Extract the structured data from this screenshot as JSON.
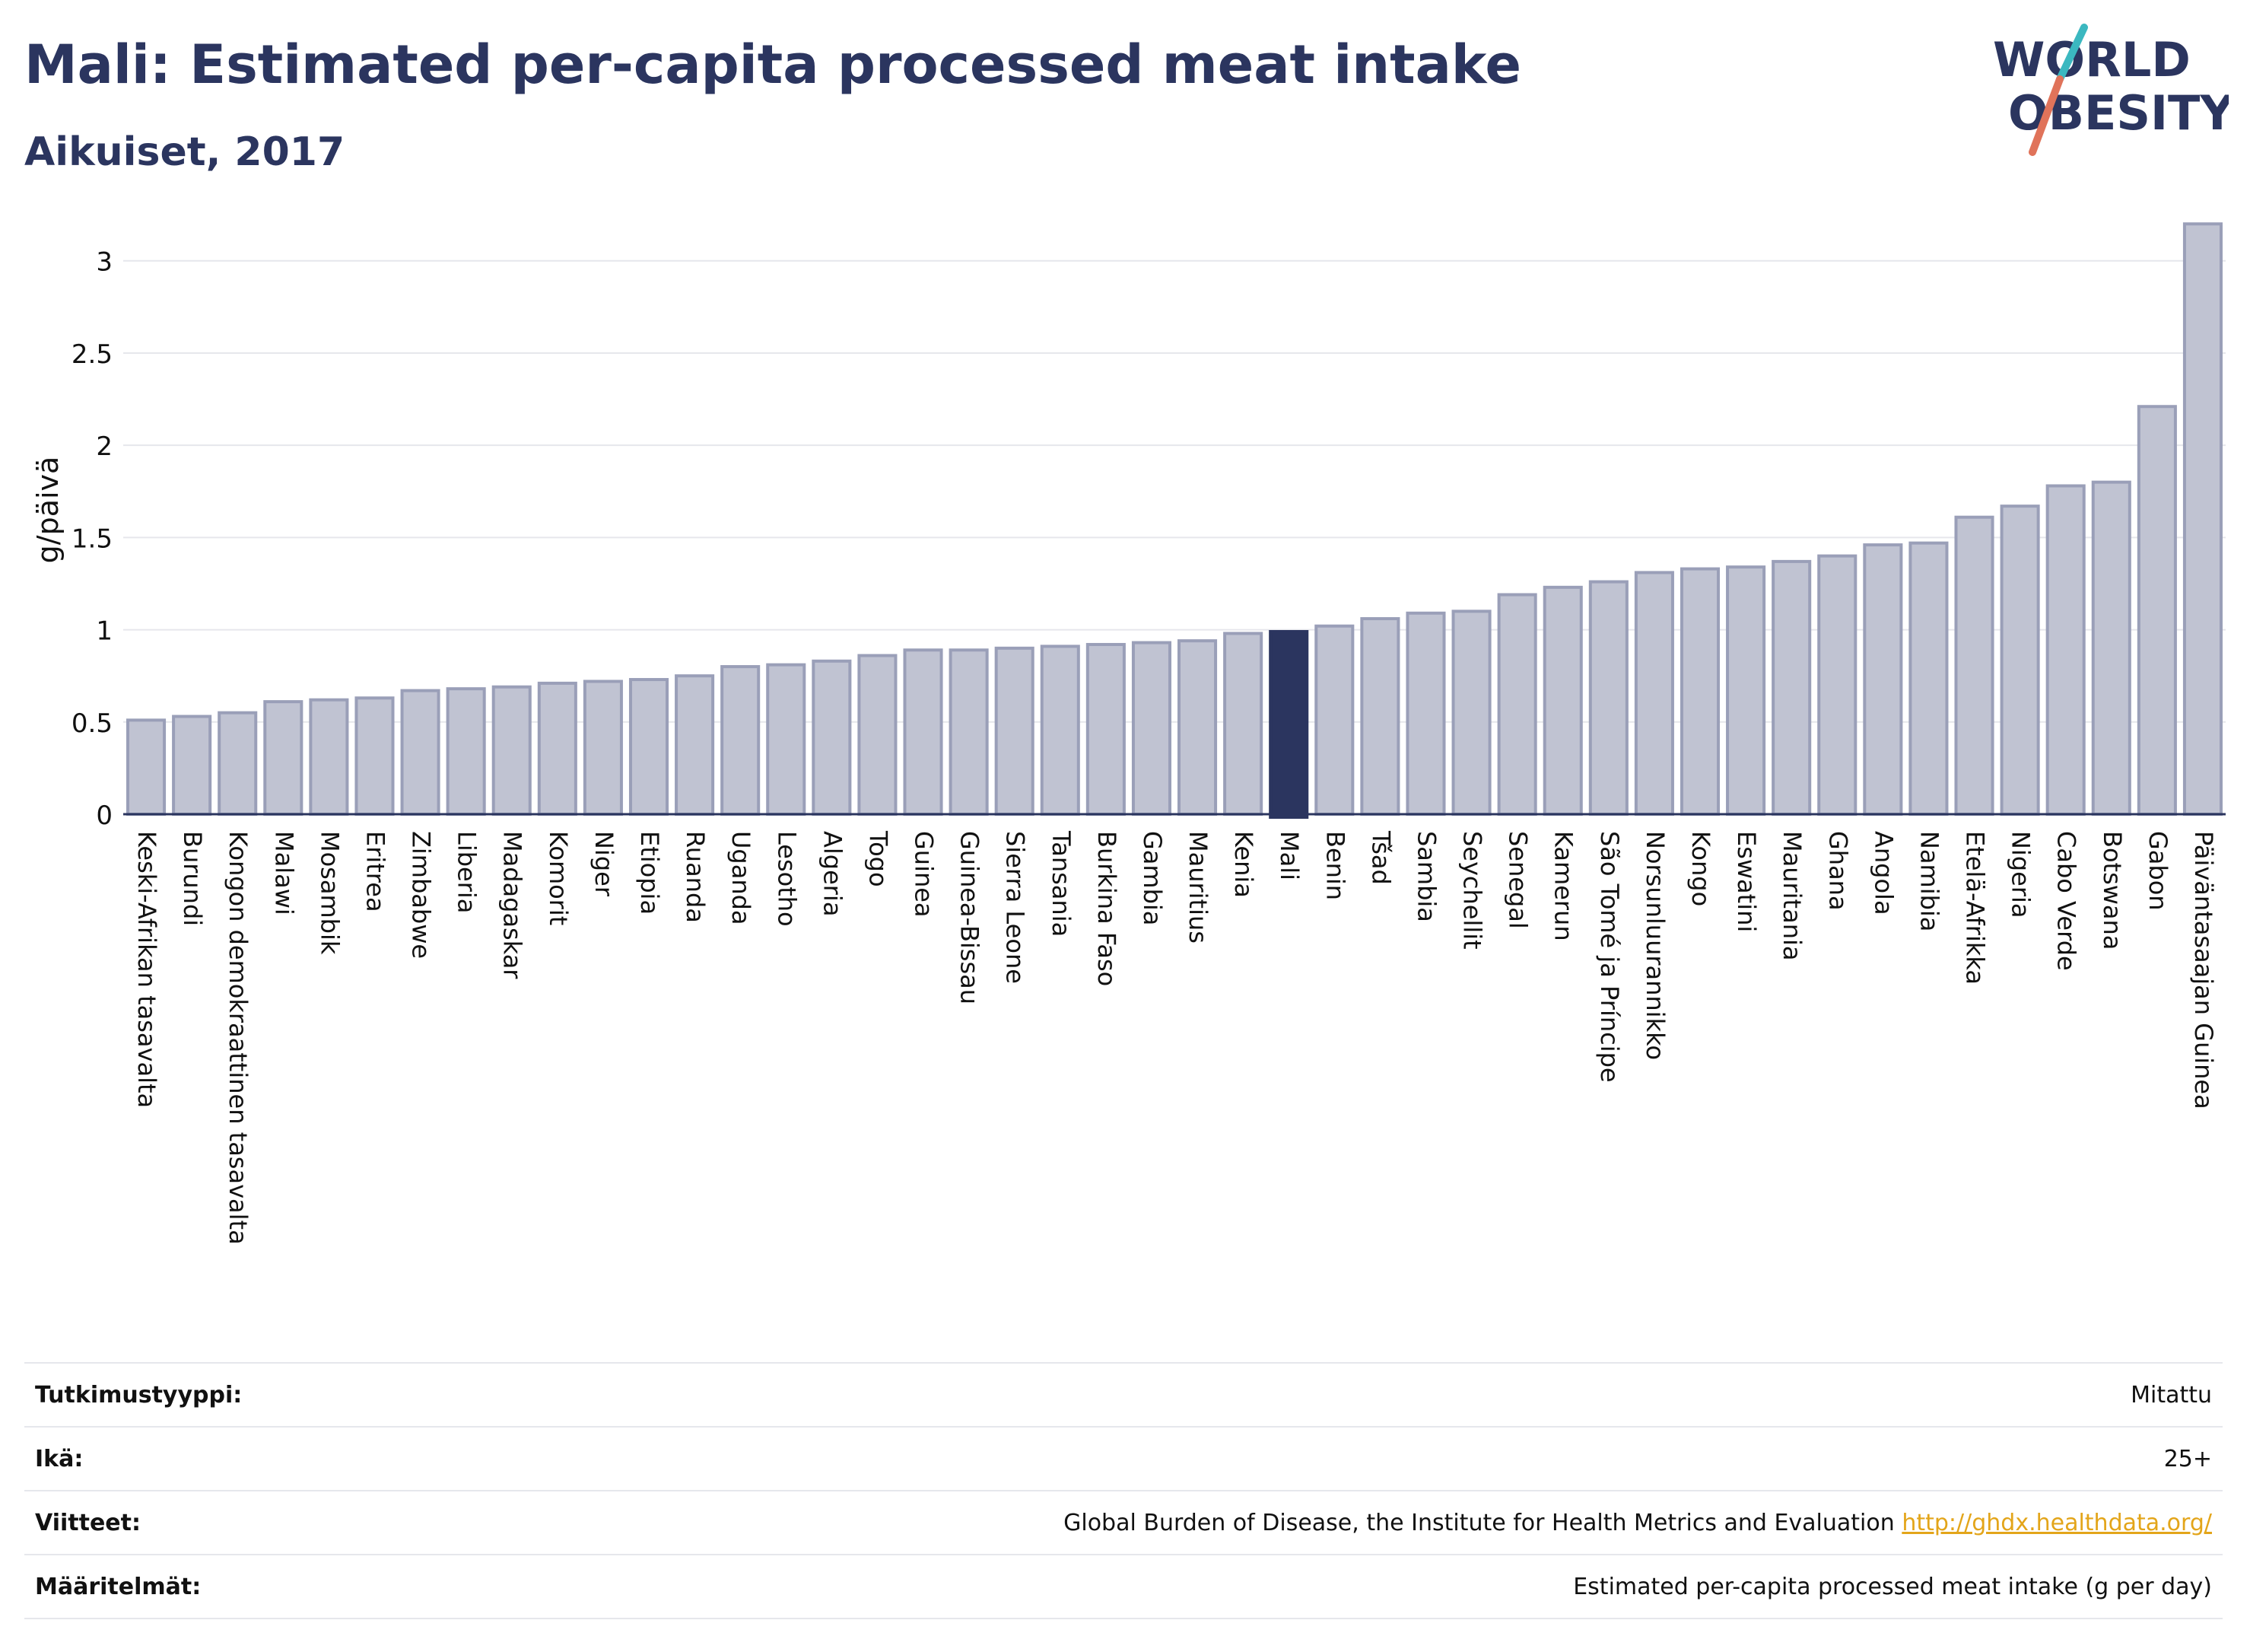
{
  "header": {
    "title": "Mali: Estimated per-capita processed meat intake",
    "subtitle": "Aikuiset, 2017"
  },
  "logo": {
    "line1": "WORLD",
    "line2": "OBESITY",
    "slash_colors": [
      "#3bb8c0",
      "#e0735a"
    ],
    "text_color": "#2b355f"
  },
  "chart_data": {
    "type": "bar",
    "title": "Mali: Estimated per-capita processed meat intake",
    "subtitle": "Aikuiset, 2017",
    "ylabel": "g/päivä",
    "ylim": [
      0,
      3.3
    ],
    "yticks": [
      0,
      0.5,
      1,
      1.5,
      2,
      2.5,
      3
    ],
    "grid": true,
    "highlight": "Mali",
    "colors": {
      "bar": "#c0c3d2",
      "bar_border": "#9a9fb8",
      "highlight": "#2b355f",
      "grid": "#e6e7ec"
    },
    "categories": [
      "Keski-Afrikan tasavalta",
      "Burundi",
      "Kongon demokraattinen tasavalta",
      "Malawi",
      "Mosambik",
      "Eritrea",
      "Zimbabwe",
      "Liberia",
      "Madagaskar",
      "Komorit",
      "Niger",
      "Etiopia",
      "Ruanda",
      "Uganda",
      "Lesotho",
      "Algeria",
      "Togo",
      "Guinea",
      "Guinea-Bissau",
      "Sierra Leone",
      "Tansania",
      "Burkina Faso",
      "Gambia",
      "Mauritius",
      "Kenia",
      "Mali",
      "Benin",
      "Tšad",
      "Sambia",
      "Seychellit",
      "Senegal",
      "Kamerun",
      "São Tomé ja Príncipe",
      "Norsunluurannikko",
      "Kongo",
      "Eswatini",
      "Mauritania",
      "Ghana",
      "Angola",
      "Namibia",
      "Etelä-Afrikka",
      "Nigeria",
      "Cabo Verde",
      "Botswana",
      "Gabon",
      "Päiväntasaajan Guinea"
    ],
    "values": [
      0.51,
      0.53,
      0.55,
      0.61,
      0.62,
      0.63,
      0.67,
      0.68,
      0.69,
      0.71,
      0.72,
      0.73,
      0.75,
      0.8,
      0.81,
      0.83,
      0.86,
      0.89,
      0.89,
      0.9,
      0.91,
      0.92,
      0.93,
      0.94,
      0.98,
      0.99,
      1.02,
      1.06,
      1.09,
      1.1,
      1.19,
      1.23,
      1.26,
      1.31,
      1.33,
      1.34,
      1.37,
      1.4,
      1.46,
      1.47,
      1.61,
      1.67,
      1.78,
      1.8,
      2.21,
      3.2
    ]
  },
  "info": [
    {
      "label": "Tutkimustyyppi:",
      "value": "Mitattu"
    },
    {
      "label": "Ikä:",
      "value": "25+"
    },
    {
      "label": "Viitteet:",
      "value": "Global Burden of Disease, the Institute for Health Metrics and Evaluation",
      "link": "http://ghdx.healthdata.org/"
    },
    {
      "label": "Määritelmät:",
      "value": "Estimated per-capita processed meat intake (g per day)"
    }
  ]
}
